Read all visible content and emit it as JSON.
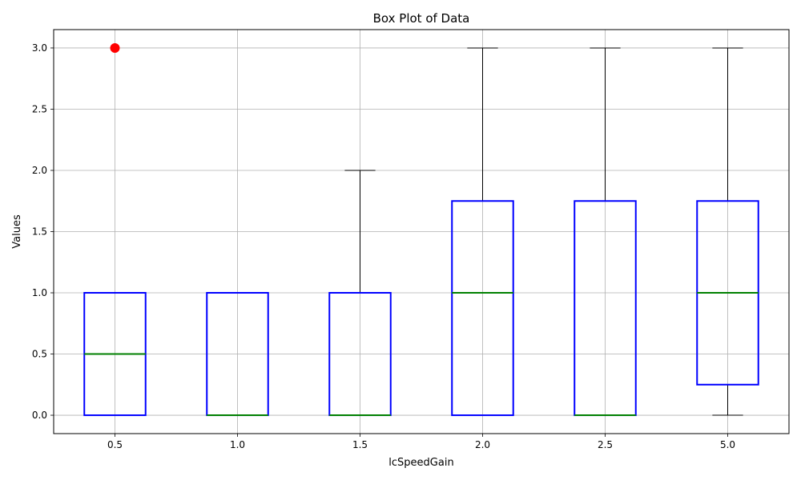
{
  "chart_data": {
    "type": "box",
    "title": "Box Plot of Data",
    "xlabel": "lcSpeedGain",
    "ylabel": "Values",
    "ylim": [
      -0.15,
      3.15
    ],
    "yticks": [
      "0.0",
      "0.5",
      "1.0",
      "1.5",
      "2.0",
      "2.5",
      "3.0"
    ],
    "grid": true,
    "colors": {
      "box": "#0000ff",
      "median": "#008000",
      "whisker": "#000000",
      "flier": "#ff0000"
    },
    "categories": [
      "0.5",
      "1.0",
      "1.5",
      "2.0",
      "2.5",
      "5.0"
    ],
    "boxes": [
      {
        "category": "0.5",
        "whislo": 0,
        "q1": 0,
        "med": 0.5,
        "q3": 1,
        "whishi": 1,
        "fliers": [
          3
        ]
      },
      {
        "category": "1.0",
        "whislo": 0,
        "q1": 0,
        "med": 0,
        "q3": 1,
        "whishi": 1,
        "fliers": []
      },
      {
        "category": "1.5",
        "whislo": 0,
        "q1": 0,
        "med": 0,
        "q3": 1,
        "whishi": 2,
        "fliers": []
      },
      {
        "category": "2.0",
        "whislo": 0,
        "q1": 0,
        "med": 1,
        "q3": 1.75,
        "whishi": 3,
        "fliers": []
      },
      {
        "category": "2.5",
        "whislo": 0,
        "q1": 0,
        "med": 0,
        "q3": 1.75,
        "whishi": 3,
        "fliers": []
      },
      {
        "category": "5.0",
        "whislo": 0,
        "q1": 0.25,
        "med": 1,
        "q3": 1.75,
        "whishi": 3,
        "fliers": []
      }
    ]
  }
}
